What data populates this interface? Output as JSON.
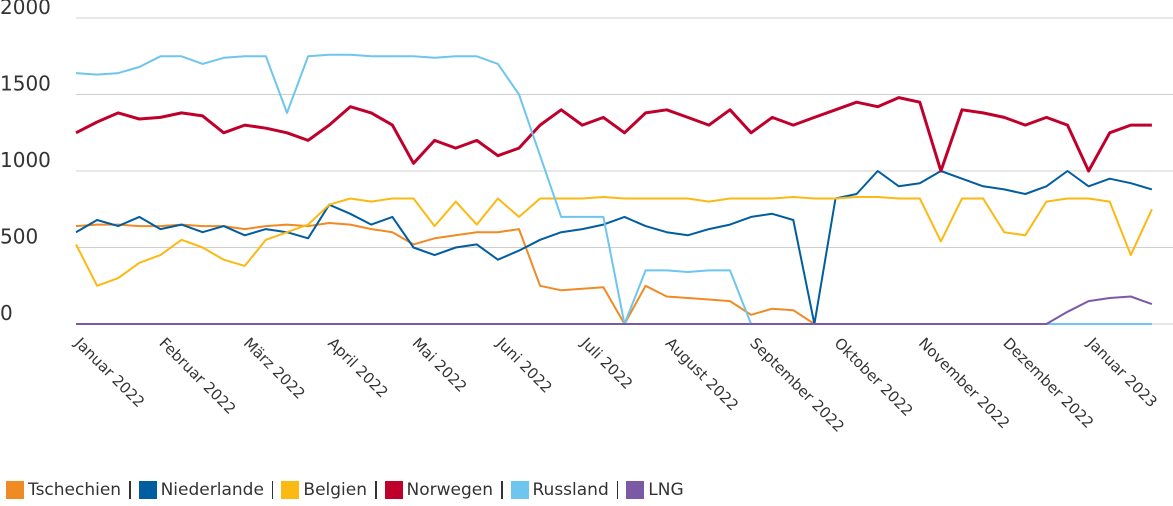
{
  "chart_data": {
    "type": "line",
    "categories": [
      "Januar 2022",
      null,
      null,
      null,
      "Februar 2022",
      null,
      null,
      null,
      "März 2022",
      null,
      null,
      null,
      "April 2022",
      null,
      null,
      null,
      "Mai 2022",
      null,
      null,
      null,
      "Juni 2022",
      null,
      null,
      null,
      "Juli 2022",
      null,
      null,
      null,
      "August 2022",
      null,
      null,
      null,
      "September 2022",
      null,
      null,
      null,
      "Oktober 2022",
      null,
      null,
      null,
      "November 2022",
      null,
      null,
      null,
      "Dezember 2022",
      null,
      null,
      null,
      "Januar 2023",
      null,
      null,
      null
    ],
    "ylim": [
      0,
      2000
    ],
    "yticks": [
      0,
      500,
      1000,
      1500,
      2000
    ],
    "grid": true,
    "series": [
      {
        "name": "Tschechien",
        "color": "#f08a24",
        "values": [
          640,
          650,
          650,
          640,
          640,
          650,
          640,
          640,
          620,
          640,
          650,
          640,
          660,
          650,
          620,
          600,
          520,
          560,
          580,
          600,
          600,
          620,
          250,
          220,
          230,
          240,
          0,
          250,
          180,
          170,
          160,
          150,
          60,
          100,
          90,
          0,
          0,
          0,
          0,
          0,
          0,
          0,
          0,
          0,
          0,
          0,
          0,
          0,
          0,
          0,
          0,
          0
        ]
      },
      {
        "name": "Niederlande",
        "color": "#005da0",
        "values": [
          600,
          680,
          640,
          700,
          620,
          650,
          600,
          640,
          580,
          620,
          600,
          560,
          780,
          720,
          650,
          700,
          500,
          450,
          500,
          520,
          420,
          480,
          550,
          600,
          620,
          650,
          700,
          640,
          600,
          580,
          620,
          650,
          700,
          720,
          680,
          0,
          820,
          850,
          1000,
          900,
          920,
          1000,
          950,
          900,
          880,
          850,
          900,
          1000,
          900,
          950,
          920,
          880
        ]
      },
      {
        "name": "Belgien",
        "color": "#fbb913",
        "values": [
          520,
          250,
          300,
          400,
          450,
          550,
          500,
          420,
          380,
          550,
          600,
          650,
          780,
          820,
          800,
          820,
          820,
          640,
          800,
          650,
          820,
          700,
          820,
          820,
          820,
          830,
          820,
          820,
          820,
          820,
          800,
          820,
          820,
          820,
          830,
          820,
          820,
          830,
          830,
          820,
          820,
          540,
          820,
          820,
          600,
          580,
          800,
          820,
          820,
          800,
          450,
          750
        ]
      },
      {
        "name": "Norwegen",
        "color": "#c0002c",
        "values": [
          1250,
          1320,
          1380,
          1340,
          1350,
          1380,
          1360,
          1250,
          1300,
          1280,
          1250,
          1200,
          1300,
          1420,
          1380,
          1300,
          1050,
          1200,
          1150,
          1200,
          1100,
          1150,
          1300,
          1400,
          1300,
          1350,
          1250,
          1380,
          1400,
          1350,
          1300,
          1400,
          1250,
          1350,
          1300,
          1350,
          1400,
          1450,
          1420,
          1480,
          1450,
          1000,
          1400,
          1380,
          1350,
          1300,
          1350,
          1300,
          1000,
          1250,
          1300,
          1300
        ]
      },
      {
        "name": "Russland",
        "color": "#6ec5ee",
        "values": [
          1640,
          1630,
          1640,
          1680,
          1750,
          1750,
          1700,
          1740,
          1750,
          1750,
          1380,
          1750,
          1760,
          1760,
          1750,
          1750,
          1750,
          1740,
          1750,
          1750,
          1700,
          1500,
          1100,
          700,
          700,
          700,
          0,
          350,
          350,
          340,
          350,
          350,
          0,
          0,
          0,
          0,
          0,
          0,
          0,
          0,
          0,
          0,
          0,
          0,
          0,
          0,
          0,
          0,
          0,
          0,
          0,
          0
        ]
      },
      {
        "name": "LNG",
        "color": "#7c59a4",
        "values": [
          0,
          0,
          0,
          0,
          0,
          0,
          0,
          0,
          0,
          0,
          0,
          0,
          0,
          0,
          0,
          0,
          0,
          0,
          0,
          0,
          0,
          0,
          0,
          0,
          0,
          0,
          0,
          0,
          0,
          0,
          0,
          0,
          0,
          0,
          0,
          0,
          0,
          0,
          0,
          0,
          0,
          0,
          0,
          0,
          0,
          0,
          0,
          80,
          150,
          170,
          180,
          130
        ]
      }
    ]
  }
}
